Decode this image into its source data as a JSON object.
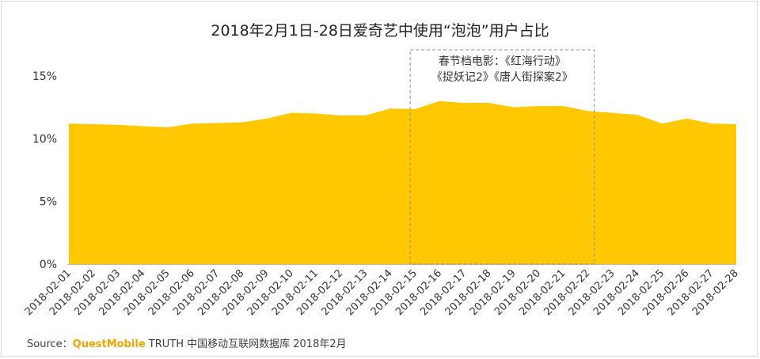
{
  "chart_data": {
    "type": "area",
    "title": "2018年2月1日-28日爱奇艺中使用“泡泡”用户占比",
    "x": [
      "2018-02-01",
      "2018-02-02",
      "2018-02-03",
      "2018-02-04",
      "2018-02-05",
      "2018-02-06",
      "2018-02-07",
      "2018-02-08",
      "2018-02-09",
      "2018-02-10",
      "2018-02-11",
      "2018-02-12",
      "2018-02-13",
      "2018-02-14",
      "2018-02-15",
      "2018-02-16",
      "2018-02-17",
      "2018-02-18",
      "2018-02-19",
      "2018-02-20",
      "2018-02-21",
      "2018-02-22",
      "2018-02-23",
      "2018-02-24",
      "2018-02-25",
      "2018-02-26",
      "2018-02-27",
      "2018-02-28"
    ],
    "series": [
      {
        "values": [
          11.2,
          11.15,
          11.1,
          11.0,
          10.9,
          11.2,
          11.25,
          11.3,
          11.6,
          12.05,
          12.0,
          11.85,
          11.85,
          12.4,
          12.35,
          13.0,
          12.85,
          12.85,
          12.5,
          12.6,
          12.6,
          12.2,
          12.05,
          11.9,
          11.2,
          11.6,
          11.2,
          11.15
        ]
      }
    ],
    "ylim": [
      0,
      15
    ],
    "yticks": [
      0,
      5,
      10,
      15
    ],
    "ytick_labels": [
      "0%",
      "5%",
      "10%",
      "15%"
    ],
    "grid": false,
    "annotation": {
      "lines": [
        "春节档电影：《红海行动》",
        "《捉妖记2》《唐人街探案2》"
      ],
      "range": [
        "2018-02-15",
        "2018-02-22"
      ]
    },
    "colors": {
      "fill": "#FFC800",
      "axis": "#bfbfbf",
      "box": "#8c8c8c"
    }
  },
  "source": {
    "label": "Source：",
    "brand": "QuestMobile",
    "text": "TRUTH 中国移动互联网数据库 2018年2月"
  }
}
